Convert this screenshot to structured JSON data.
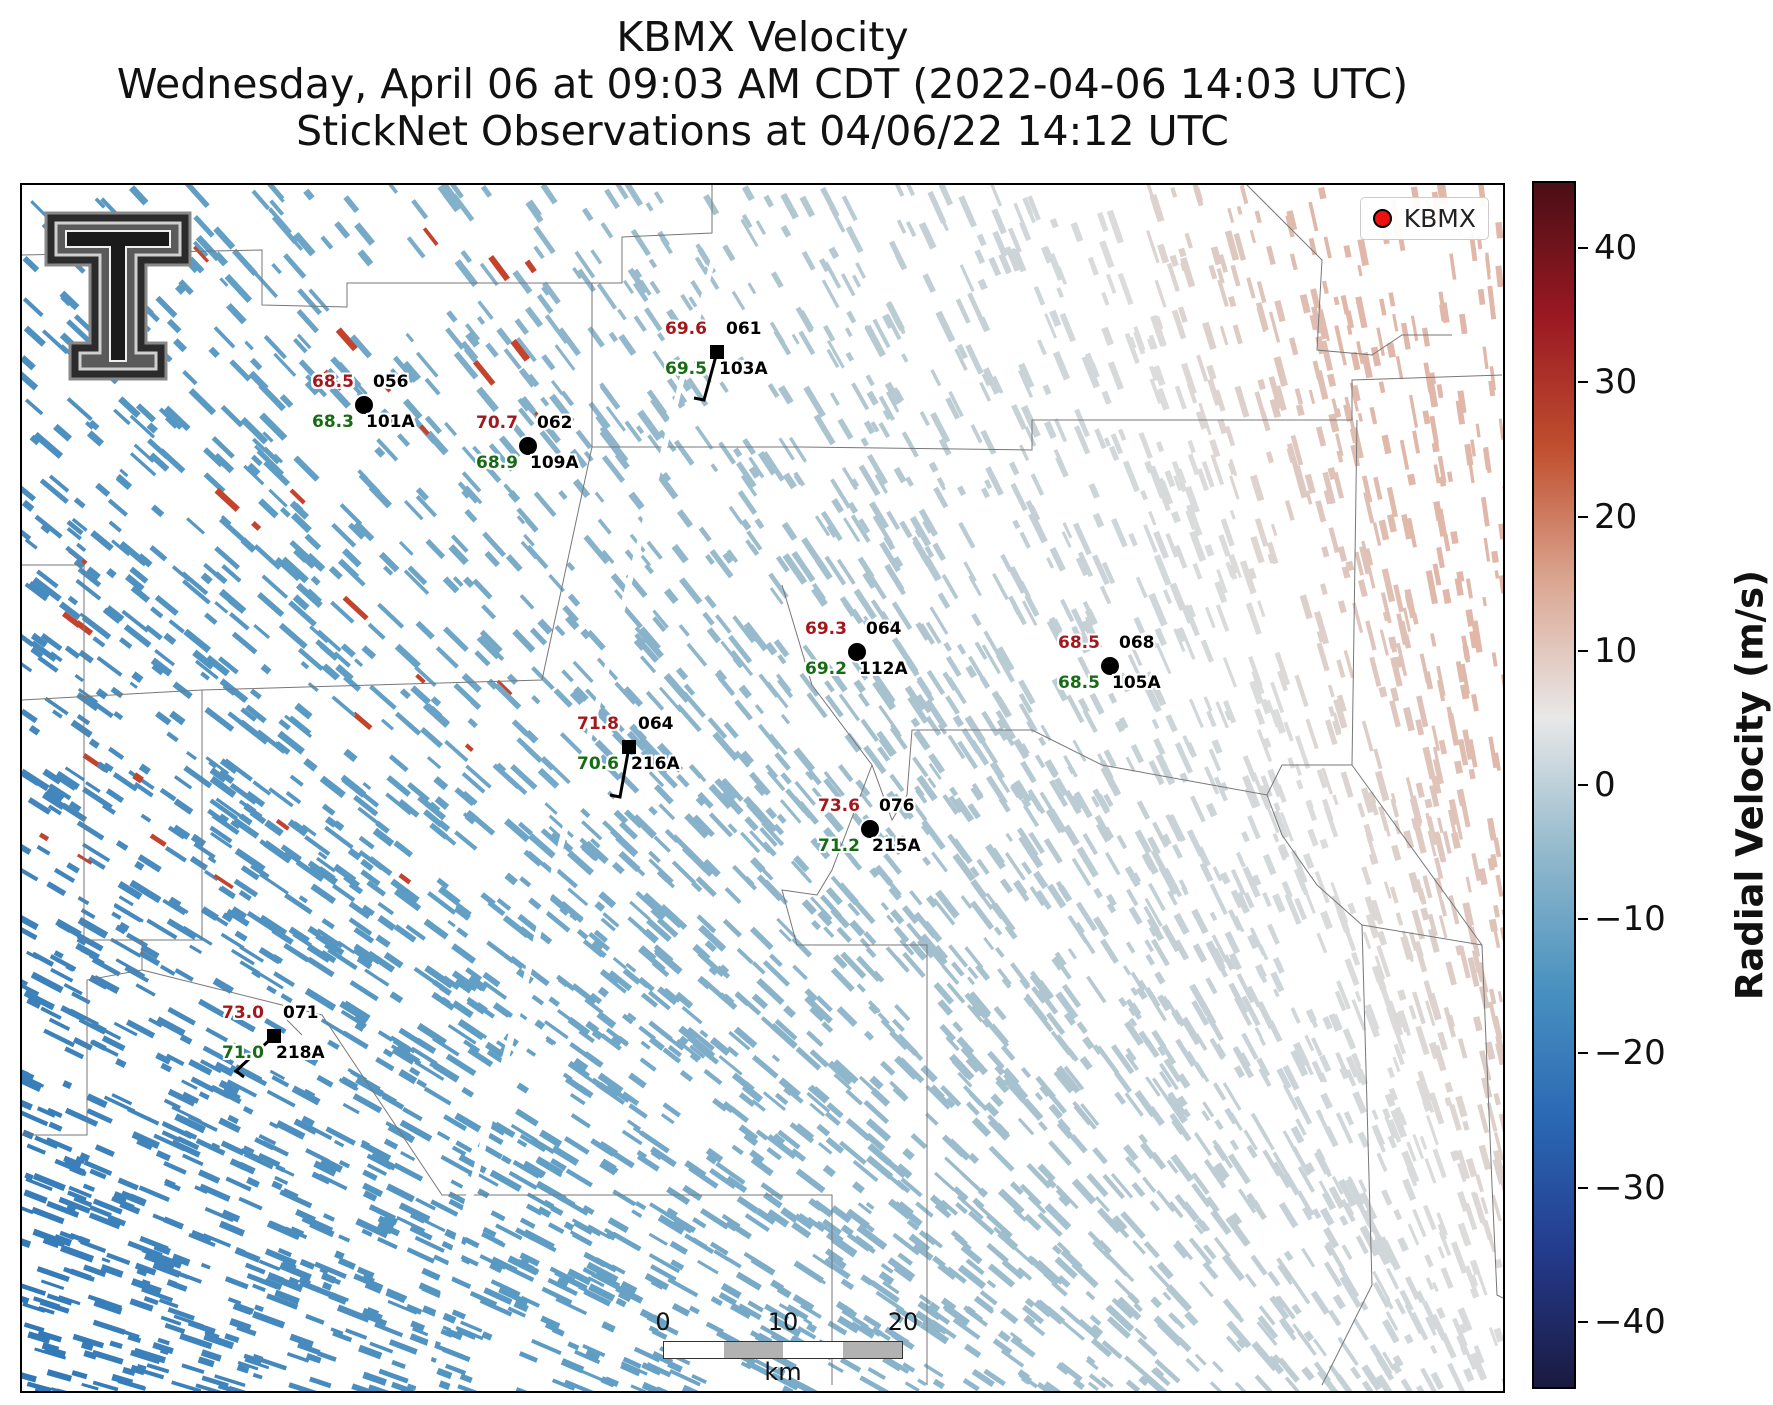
{
  "title": {
    "line1": "KBMX Velocity",
    "line2": "Wednesday, April 06 at 09:03 AM CDT (2022-04-06 14:03 UTC)",
    "line3": "StickNet Observations at 04/06/22 14:12 UTC"
  },
  "legend": {
    "label": "KBMX",
    "marker_color": "#ee1111"
  },
  "logo": {
    "name": "Texas Tech double-T logo",
    "text": "T"
  },
  "stations": [
    {
      "temp": "68.5",
      "dew": "68.3",
      "wind_dir": "056",
      "id": "101A",
      "marker": "circle",
      "barb": false
    },
    {
      "temp": "70.7",
      "dew": "68.9",
      "wind_dir": "062",
      "id": "109A",
      "marker": "circle",
      "barb": false
    },
    {
      "temp": "69.6",
      "dew": "69.5",
      "wind_dir": "061",
      "id": "103A",
      "marker": "square",
      "barb": true
    },
    {
      "temp": "69.3",
      "dew": "69.2",
      "wind_dir": "064",
      "id": "112A",
      "marker": "circle",
      "barb": false
    },
    {
      "temp": "68.5",
      "dew": "68.5",
      "wind_dir": "068",
      "id": "105A",
      "marker": "circle",
      "barb": false
    },
    {
      "temp": "71.8",
      "dew": "70.6",
      "wind_dir": "064",
      "id": "216A",
      "marker": "square",
      "barb": true
    },
    {
      "temp": "73.6",
      "dew": "71.2",
      "wind_dir": "076",
      "id": "215A",
      "marker": "circle",
      "barb": false
    },
    {
      "temp": "73.0",
      "dew": "71.0",
      "wind_dir": "071",
      "id": "218A",
      "marker": "square",
      "barb": true
    }
  ],
  "scale_bar": {
    "ticks": [
      "0",
      "10",
      "20"
    ],
    "unit": "km"
  },
  "colorbar": {
    "label": "Radial Velocity (m/s)",
    "min": -45,
    "max": 45,
    "ticks": [
      "40",
      "30",
      "20",
      "10",
      "0",
      "−10",
      "−20",
      "−30",
      "−40"
    ],
    "tick_values": [
      40,
      30,
      20,
      10,
      0,
      -10,
      -20,
      -30,
      -40
    ],
    "colors": [
      "#1a1a40",
      "#243a8c",
      "#2a68b4",
      "#4a92c0",
      "#93b9cc",
      "#e8e8e8",
      "#dba893",
      "#c0502f",
      "#9a1823",
      "#4a0f15"
    ]
  },
  "colors": {
    "temp_text": "#a3181c",
    "dew_text": "#176b15",
    "inbound_strong": "#2f76b6",
    "inbound_mid": "#5c9cc4",
    "inbound_weak": "#a9c3cf",
    "neutral": "#dcdcdc",
    "outbound_weak": "#e0b7a8",
    "outbound_strong": "#c4432c"
  }
}
